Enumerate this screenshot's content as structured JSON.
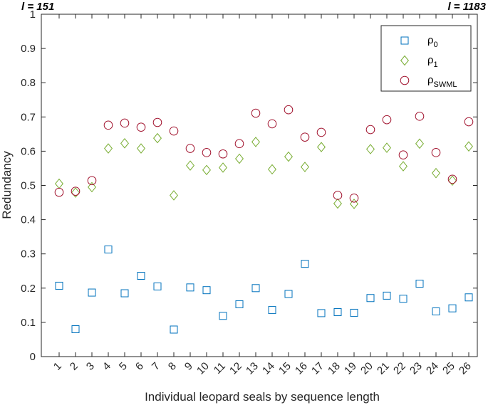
{
  "chart_data": {
    "type": "scatter",
    "xlabel": "Individual leopard seals by sequence length",
    "ylabel": "Redundancy",
    "ylim": [
      0,
      1
    ],
    "yticks": [
      "0",
      "0.1",
      "0.2",
      "0.3",
      "0.4",
      "0.5",
      "0.6",
      "0.7",
      "0.8",
      "0.9",
      "1"
    ],
    "categories": [
      "1",
      "2",
      "3",
      "4",
      "5",
      "6",
      "7",
      "8",
      "9",
      "10",
      "11",
      "12",
      "13",
      "14",
      "15",
      "16",
      "17",
      "18",
      "19",
      "20",
      "21",
      "22",
      "23",
      "24",
      "25",
      "26"
    ],
    "corner_left": "l = 151",
    "corner_right": "l = 1183",
    "legend_position": "top-right",
    "grid": false,
    "series": [
      {
        "name": "ρ",
        "subscript": "0",
        "marker": "square",
        "color": "#0072BD",
        "values": [
          0.207,
          0.08,
          0.187,
          0.313,
          0.185,
          0.236,
          0.205,
          0.079,
          0.202,
          0.194,
          0.119,
          0.153,
          0.2,
          0.136,
          0.183,
          0.271,
          0.127,
          0.13,
          0.128,
          0.171,
          0.178,
          0.169,
          0.213,
          0.132,
          0.141,
          0.173
        ]
      },
      {
        "name": "ρ",
        "subscript": "1",
        "marker": "diamond",
        "color": "#77AC30",
        "values": [
          0.505,
          0.479,
          0.495,
          0.608,
          0.623,
          0.608,
          0.638,
          0.471,
          0.558,
          0.545,
          0.552,
          0.578,
          0.627,
          0.547,
          0.584,
          0.554,
          0.612,
          0.447,
          0.446,
          0.606,
          0.61,
          0.556,
          0.622,
          0.536,
          0.514,
          0.614
        ]
      },
      {
        "name": "ρ",
        "subscript": "SWML",
        "marker": "circle",
        "color": "#A2142F",
        "values": [
          0.48,
          0.483,
          0.514,
          0.676,
          0.682,
          0.67,
          0.684,
          0.659,
          0.608,
          0.596,
          0.592,
          0.622,
          0.711,
          0.68,
          0.721,
          0.641,
          0.655,
          0.471,
          0.463,
          0.663,
          0.692,
          0.589,
          0.702,
          0.596,
          0.518,
          0.686
        ]
      }
    ]
  }
}
